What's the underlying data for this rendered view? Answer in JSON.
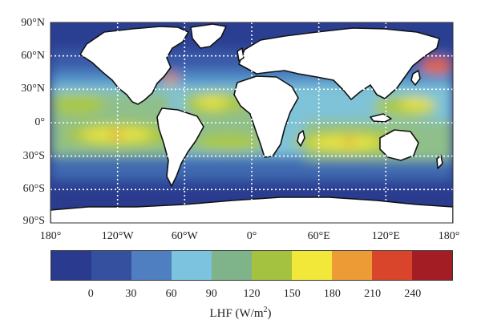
{
  "map": {
    "lat_labels": [
      "90°N",
      "60°N",
      "30°N",
      "0°",
      "30°S",
      "60°S",
      "90°S"
    ],
    "lon_labels": [
      "180°",
      "120°W",
      "60°W",
      "0°",
      "60°E",
      "120°E",
      "180°"
    ],
    "colors": {
      "ocean_background": "#2b3f92",
      "land": "#ffffff",
      "coast": "#111111",
      "grid": "#ffffff"
    }
  },
  "colorbar": {
    "colors": [
      "#2a3a8e",
      "#34509f",
      "#4f7fc0",
      "#7cc3e0",
      "#7fb38a",
      "#a4c23f",
      "#f2e83a",
      "#ec9b35",
      "#d9452a",
      "#a31d25"
    ],
    "ticks": [
      "0",
      "30",
      "60",
      "90",
      "120",
      "150",
      "180",
      "210",
      "240"
    ],
    "label_prefix": "LHF (W/m",
    "label_sup": "2",
    "label_suffix": ")"
  }
}
